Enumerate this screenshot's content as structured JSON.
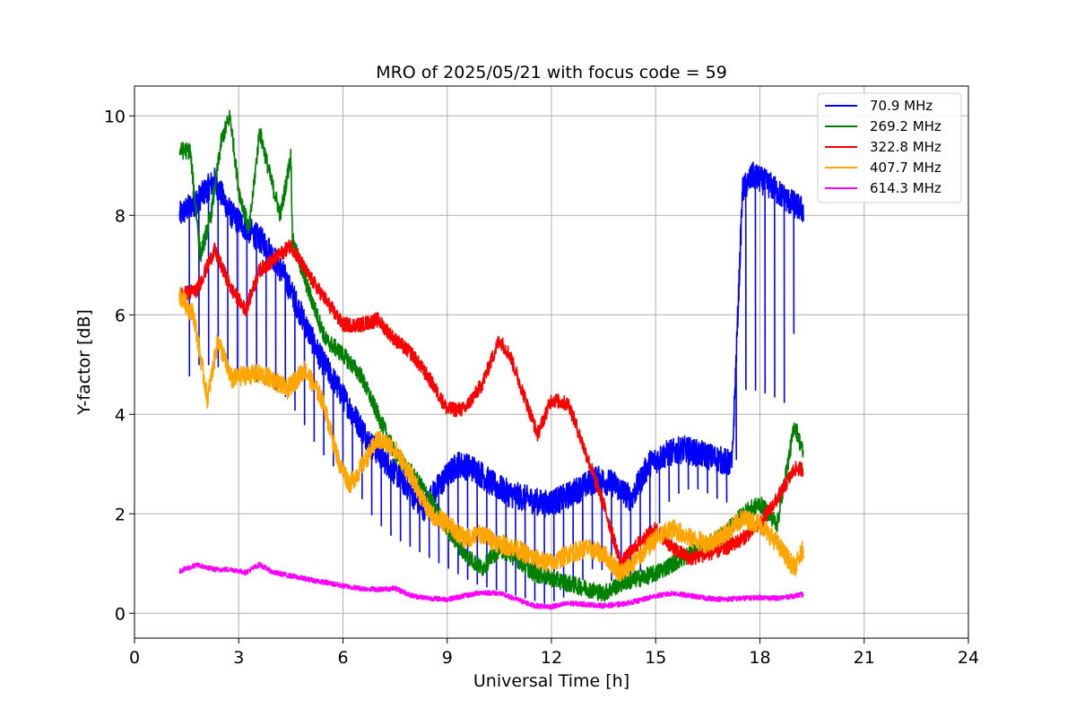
{
  "chart_data": {
    "type": "line",
    "title": "MRO of 2025/05/21 with focus code = 59",
    "xlabel": "Universal Time [h]",
    "ylabel": "Y-factor [dB]",
    "xlim": [
      0,
      24
    ],
    "ylim": [
      -0.5,
      10.6
    ],
    "xticks": [
      0,
      3,
      6,
      9,
      12,
      15,
      18,
      21,
      24
    ],
    "yticks": [
      0,
      2,
      4,
      6,
      8,
      10
    ],
    "grid": true,
    "legend_position": "top-right",
    "series": [
      {
        "name": " 70.9 MHz",
        "color": "#0000ff",
        "x": [
          1.3,
          1.8,
          2.3,
          2.8,
          3.3,
          3.8,
          4.3,
          4.8,
          5.3,
          5.8,
          6.3,
          6.8,
          7.3,
          7.8,
          8.3,
          8.8,
          9.3,
          9.8,
          10.3,
          10.8,
          11.3,
          11.8,
          12.3,
          12.8,
          13.3,
          13.8,
          14.3,
          14.8,
          15.3,
          15.8,
          16.3,
          16.8,
          17.2,
          17.5,
          17.8,
          18.3,
          18.8,
          19.25
        ],
        "y": [
          8.0,
          8.3,
          8.7,
          8.0,
          7.7,
          7.4,
          6.8,
          6.0,
          5.2,
          4.6,
          4.0,
          3.4,
          3.0,
          2.6,
          2.1,
          2.6,
          3.0,
          2.9,
          2.6,
          2.4,
          2.3,
          2.2,
          2.3,
          2.5,
          2.7,
          2.6,
          2.3,
          3.0,
          3.2,
          3.3,
          3.2,
          3.1,
          3.0,
          8.5,
          8.8,
          8.6,
          8.3,
          8.1
        ],
        "spike_floor": [
          4.5,
          5.0,
          5.0,
          4.8,
          4.7,
          4.6,
          4.4,
          3.9,
          3.3,
          2.9,
          2.6,
          2.0,
          1.6,
          1.4,
          1.2,
          1.0,
          0.8,
          0.6,
          0.5,
          0.4,
          0.3,
          0.2,
          0.3,
          0.6,
          1.0,
          0.6,
          0.5,
          1.2,
          2.2,
          2.5,
          2.5,
          2.3,
          2.2,
          4.5,
          4.5,
          4.4,
          4.2,
          7.9
        ]
      },
      {
        "name": "269.2 MHz",
        "color": "#008000",
        "x": [
          1.3,
          1.6,
          1.9,
          2.2,
          2.5,
          2.75,
          3.0,
          3.3,
          3.6,
          3.9,
          4.2,
          4.5,
          4.55,
          5.0,
          5.5,
          6.0,
          6.5,
          7.0,
          7.5,
          8.0,
          8.5,
          9.0,
          9.5,
          10.0,
          10.5,
          11.0,
          11.5,
          12.0,
          12.5,
          13.0,
          13.5,
          14.0,
          14.5,
          15.0,
          15.5,
          16.0,
          16.5,
          17.0,
          17.5,
          18.0,
          18.5,
          19.0,
          19.25
        ],
        "y": [
          9.3,
          9.3,
          7.2,
          8.0,
          9.5,
          10.0,
          8.5,
          7.7,
          9.7,
          8.8,
          8.0,
          9.2,
          7.5,
          6.5,
          5.5,
          5.2,
          4.8,
          4.0,
          3.2,
          2.8,
          2.3,
          1.7,
          1.2,
          0.9,
          1.3,
          1.1,
          0.8,
          0.7,
          0.6,
          0.5,
          0.4,
          0.6,
          0.7,
          0.8,
          1.0,
          1.2,
          1.4,
          1.6,
          2.0,
          2.2,
          1.8,
          3.8,
          3.2
        ]
      },
      {
        "name": "322.8 MHz",
        "color": "#ff0000",
        "x": [
          1.3,
          1.8,
          2.3,
          2.8,
          3.2,
          3.6,
          4.0,
          4.5,
          5.0,
          5.5,
          6.0,
          6.5,
          7.0,
          7.5,
          8.0,
          8.5,
          9.0,
          9.5,
          10.0,
          10.5,
          10.8,
          11.2,
          11.6,
          12.0,
          12.5,
          13.0,
          13.5,
          14.0,
          14.5,
          15.0,
          15.5,
          16.0,
          16.5,
          17.0,
          17.5,
          18.0,
          18.5,
          19.0,
          19.25
        ],
        "y": [
          6.4,
          6.5,
          7.3,
          6.5,
          6.1,
          6.9,
          7.1,
          7.4,
          6.8,
          6.3,
          5.8,
          5.8,
          5.9,
          5.5,
          5.2,
          4.7,
          4.1,
          4.1,
          4.6,
          5.5,
          5.2,
          4.4,
          3.6,
          4.3,
          4.2,
          3.2,
          2.2,
          1.0,
          1.4,
          1.7,
          1.3,
          1.1,
          1.2,
          1.3,
          1.5,
          1.8,
          2.3,
          2.9,
          2.9
        ]
      },
      {
        "name": "407.7 MHz",
        "color": "#ffa500",
        "x": [
          1.3,
          1.7,
          2.1,
          2.4,
          2.8,
          3.2,
          3.6,
          4.0,
          4.4,
          4.9,
          5.4,
          5.9,
          6.2,
          6.5,
          7.0,
          7.5,
          8.0,
          8.5,
          9.0,
          9.5,
          10.0,
          10.5,
          11.0,
          11.5,
          12.0,
          12.5,
          13.0,
          13.5,
          14.0,
          14.5,
          15.0,
          15.5,
          16.0,
          16.5,
          17.0,
          17.5,
          18.0,
          18.5,
          19.0,
          19.25
        ],
        "y": [
          6.4,
          6.0,
          4.3,
          5.5,
          4.7,
          4.8,
          4.8,
          4.7,
          4.5,
          4.9,
          4.3,
          3.0,
          2.6,
          2.9,
          3.5,
          3.3,
          2.7,
          2.0,
          1.8,
          1.5,
          1.6,
          1.4,
          1.3,
          1.1,
          1.0,
          1.2,
          1.3,
          1.2,
          0.8,
          1.1,
          1.5,
          1.7,
          1.5,
          1.4,
          1.6,
          1.9,
          1.8,
          1.4,
          0.9,
          1.3
        ]
      },
      {
        "name": "614.3 MHz",
        "color": "#ff00ff",
        "x": [
          1.3,
          1.8,
          2.3,
          2.8,
          3.2,
          3.6,
          4.0,
          4.5,
          5.0,
          5.5,
          6.0,
          6.5,
          7.0,
          7.5,
          8.0,
          8.5,
          9.0,
          9.5,
          10.0,
          10.5,
          11.0,
          11.5,
          12.0,
          12.5,
          13.0,
          13.5,
          14.0,
          14.5,
          15.0,
          15.5,
          16.0,
          16.5,
          17.0,
          17.5,
          18.0,
          18.5,
          19.0,
          19.25
        ],
        "y": [
          0.85,
          0.97,
          0.88,
          0.88,
          0.82,
          0.98,
          0.82,
          0.75,
          0.68,
          0.62,
          0.55,
          0.5,
          0.48,
          0.5,
          0.35,
          0.3,
          0.28,
          0.35,
          0.42,
          0.4,
          0.28,
          0.15,
          0.13,
          0.2,
          0.18,
          0.15,
          0.18,
          0.25,
          0.35,
          0.4,
          0.35,
          0.3,
          0.28,
          0.3,
          0.32,
          0.3,
          0.35,
          0.38
        ]
      }
    ]
  }
}
